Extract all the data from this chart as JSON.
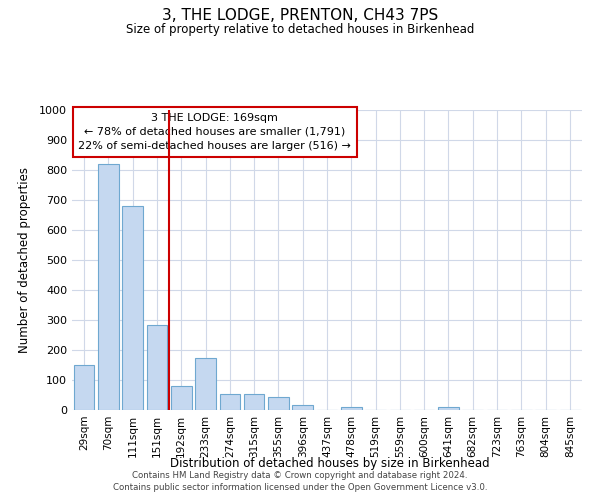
{
  "title": "3, THE LODGE, PRENTON, CH43 7PS",
  "subtitle": "Size of property relative to detached houses in Birkenhead",
  "bar_labels": [
    "29sqm",
    "70sqm",
    "111sqm",
    "151sqm",
    "192sqm",
    "233sqm",
    "274sqm",
    "315sqm",
    "355sqm",
    "396sqm",
    "437sqm",
    "478sqm",
    "519sqm",
    "559sqm",
    "600sqm",
    "641sqm",
    "682sqm",
    "723sqm",
    "763sqm",
    "804sqm",
    "845sqm"
  ],
  "bar_values": [
    150,
    820,
    680,
    285,
    80,
    175,
    55,
    52,
    42,
    18,
    0,
    10,
    0,
    0,
    0,
    10,
    0,
    0,
    0,
    0,
    0
  ],
  "bar_color": "#c5d8f0",
  "bar_edge_color": "#6fa8d0",
  "ylabel": "Number of detached properties",
  "xlabel": "Distribution of detached houses by size in Birkenhead",
  "ylim": [
    0,
    1000
  ],
  "yticks": [
    0,
    100,
    200,
    300,
    400,
    500,
    600,
    700,
    800,
    900,
    1000
  ],
  "vline_x": 3.5,
  "vline_color": "#cc0000",
  "annotation_title": "3 THE LODGE: 169sqm",
  "annotation_line1": "← 78% of detached houses are smaller (1,791)",
  "annotation_line2": "22% of semi-detached houses are larger (516) →",
  "footer_line1": "Contains HM Land Registry data © Crown copyright and database right 2024.",
  "footer_line2": "Contains public sector information licensed under the Open Government Licence v3.0.",
  "background_color": "#ffffff",
  "grid_color": "#d0d8e8"
}
